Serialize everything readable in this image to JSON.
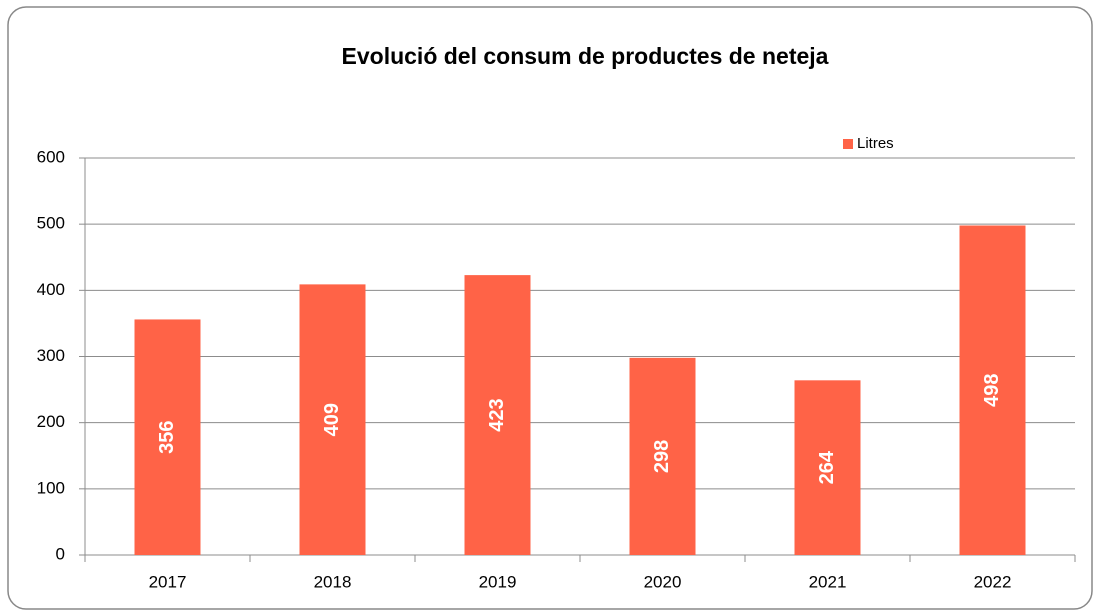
{
  "chart_data": {
    "type": "bar",
    "title": "Evolució del consum de productes de neteja",
    "categories": [
      "2017",
      "2018",
      "2019",
      "2020",
      "2021",
      "2022"
    ],
    "series": [
      {
        "name": "Litres",
        "color": "#ff6347",
        "values": [
          356,
          409,
          423,
          298,
          264,
          498
        ]
      }
    ],
    "ylim": [
      0,
      600
    ],
    "yticks": [
      0,
      100,
      200,
      300,
      400,
      500,
      600
    ],
    "grid": true,
    "legend": "top-right",
    "data_labels": true
  }
}
